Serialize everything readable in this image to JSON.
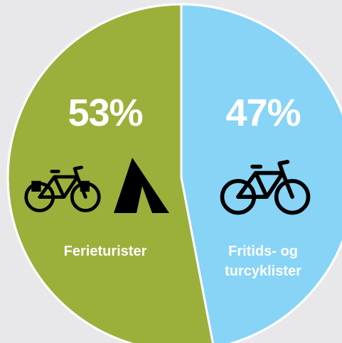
{
  "chart_data": {
    "type": "pie",
    "categories": [
      "Ferieturister",
      "Fritids- og turcyklister"
    ],
    "values": [
      53,
      47
    ],
    "value_labels": [
      "53%",
      "47%"
    ],
    "colors": [
      "#9bb03b",
      "#87d4f6"
    ]
  }
}
